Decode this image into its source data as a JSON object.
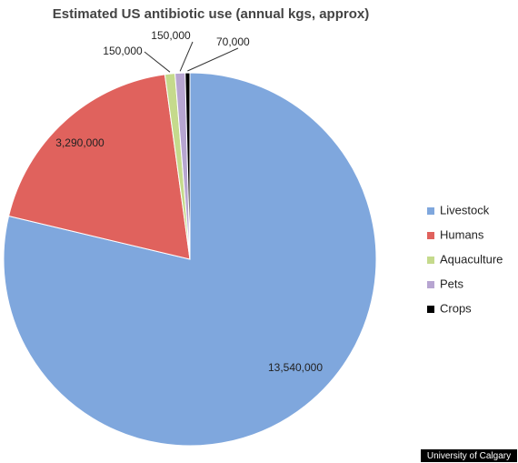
{
  "chart_data": {
    "type": "pie",
    "title": "Estimated US antibiotic use (annual kgs, approx)",
    "categories": [
      "Livestock",
      "Humans",
      "Aquaculture",
      "Pets",
      "Crops"
    ],
    "values": [
      13540000,
      3290000,
      150000,
      150000,
      70000
    ],
    "value_labels": [
      "13,540,000",
      "3,290,000",
      "150,000",
      "150,000",
      "70,000"
    ],
    "colors": [
      "#7fa7dd",
      "#e0625d",
      "#c5da8c",
      "#b7a5d1",
      "#000000"
    ],
    "legend": "right",
    "source": "University of Calgary"
  }
}
